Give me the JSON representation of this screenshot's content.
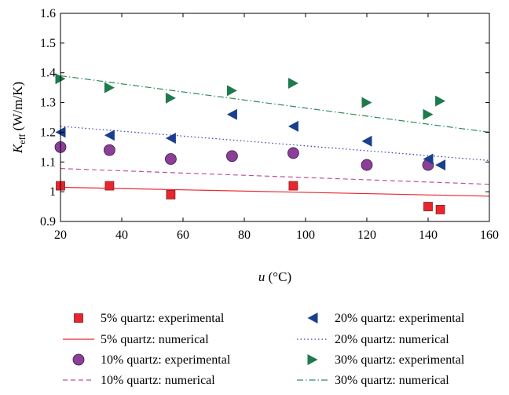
{
  "chart_data": {
    "type": "scatter",
    "xlabel": {
      "var": "u",
      "unit": " (°C)"
    },
    "ylabel": {
      "var": "K",
      "sub": "eff",
      "unit": " (W/m/K)"
    },
    "xlim": [
      20,
      160
    ],
    "ylim": [
      0.9,
      1.6
    ],
    "xticks": [
      20,
      40,
      60,
      80,
      100,
      120,
      140,
      160
    ],
    "yticks": [
      0.9,
      1,
      1.1,
      1.2,
      1.3,
      1.4,
      1.5,
      1.6
    ],
    "xtick_labels": [
      "20",
      "40",
      "60",
      "80",
      "100",
      "120",
      "140",
      "160"
    ],
    "ytick_labels": [
      "0.9",
      "1",
      "1.1",
      "1.2",
      "1.3",
      "1.4",
      "1.5",
      "1.6"
    ],
    "grid": false,
    "legend_position": "below",
    "series": [
      {
        "name": "5% quartz: experimental",
        "kind": "markers",
        "marker": "square",
        "color": "#e8262f",
        "x": [
          20,
          36,
          56,
          96,
          140,
          144
        ],
        "y": [
          1.02,
          1.02,
          0.99,
          1.02,
          0.95,
          0.94
        ]
      },
      {
        "name": "5% quartz: numerical",
        "kind": "line",
        "dash": "solid",
        "color": "#e8262f",
        "x": [
          20,
          160
        ],
        "y": [
          1.015,
          0.985
        ]
      },
      {
        "name": "10% quartz: experimental",
        "kind": "markers",
        "marker": "circle",
        "color": "#8b3f98",
        "x": [
          20,
          36,
          56,
          76,
          96,
          120,
          140
        ],
        "y": [
          1.15,
          1.14,
          1.11,
          1.12,
          1.13,
          1.09,
          1.09
        ]
      },
      {
        "name": "10% quartz: numerical",
        "kind": "line",
        "dash": "dashed",
        "color": "#b8549a",
        "x": [
          20,
          160
        ],
        "y": [
          1.078,
          1.025
        ]
      },
      {
        "name": "20% quartz: experimental",
        "kind": "markers",
        "marker": "triangle-left",
        "color": "#1b3f8f",
        "x": [
          20,
          36,
          56,
          76,
          96,
          120,
          140,
          144
        ],
        "y": [
          1.2,
          1.19,
          1.18,
          1.26,
          1.22,
          1.17,
          1.11,
          1.09
        ]
      },
      {
        "name": "20% quartz: numerical",
        "kind": "line",
        "dash": "dotted",
        "color": "#3a3aa8",
        "x": [
          20,
          160
        ],
        "y": [
          1.22,
          1.105
        ]
      },
      {
        "name": "30% quartz: experimental",
        "kind": "markers",
        "marker": "triangle-right",
        "color": "#1e7a4c",
        "x": [
          20,
          36,
          56,
          76,
          96,
          120,
          140,
          144
        ],
        "y": [
          1.38,
          1.35,
          1.315,
          1.34,
          1.365,
          1.3,
          1.26,
          1.305
        ]
      },
      {
        "name": "30% quartz: numerical",
        "kind": "line",
        "dash": "dashdot",
        "color": "#2e8b57",
        "x": [
          20,
          160
        ],
        "y": [
          1.39,
          1.2
        ]
      }
    ],
    "legend_order": [
      0,
      4,
      1,
      5,
      2,
      6,
      3,
      7
    ]
  }
}
